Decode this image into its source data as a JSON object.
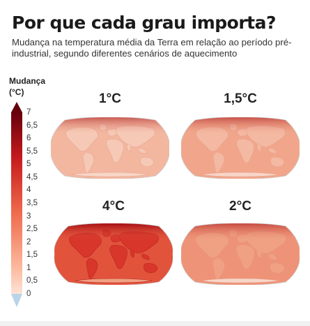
{
  "header": {
    "title": "Por que cada grau importa?",
    "subtitle": "Mudança na temperatura média da Terra em relação ao período pré-industrial, segundo diferentes cenários de aquecimento"
  },
  "legend": {
    "title_line1": "Mudança",
    "title_line2": "(°C)",
    "ticks": [
      "7",
      "6,5",
      "6",
      "5,5",
      "5",
      "4,5",
      "4",
      "3,5",
      "3",
      "2,5",
      "2",
      "1,5",
      "1",
      "0,5",
      "0"
    ],
    "tick_values": [
      7,
      6.5,
      6,
      5.5,
      5,
      4.5,
      4,
      3.5,
      3,
      2.5,
      2,
      1.5,
      1,
      0.5,
      0
    ],
    "range": [
      0,
      7
    ],
    "colors": {
      "top": "#67000d",
      "mid_high": "#c61a1d",
      "mid": "#ef6a4c",
      "low": "#fcb79c",
      "lowest": "#fde3d6",
      "below_zero": "#b9d3e8"
    }
  },
  "maps": [
    {
      "id": "1",
      "label": "1°C",
      "warming": 1.0,
      "panel": "top-left"
    },
    {
      "id": "15",
      "label": "1,5°C",
      "warming": 1.5,
      "panel": "top-right"
    },
    {
      "id": "4",
      "label": "4°C",
      "warming": 4.0,
      "panel": "bottom-left"
    },
    {
      "id": "2",
      "label": "2°C",
      "warming": 2.0,
      "panel": "bottom-right"
    }
  ],
  "map_colors": {
    "land_1": "#f6c9b6",
    "ocean_1": "#f3b7a0",
    "land_15": "#f4b9a2",
    "ocean_15": "#f1a68b",
    "land_2": "#f0a184",
    "ocean_2": "#ee9377",
    "land_4": "#d8362b",
    "ocean_4": "#e2533c",
    "arctic": "#a50f15",
    "outline": "#c9c9c9"
  }
}
